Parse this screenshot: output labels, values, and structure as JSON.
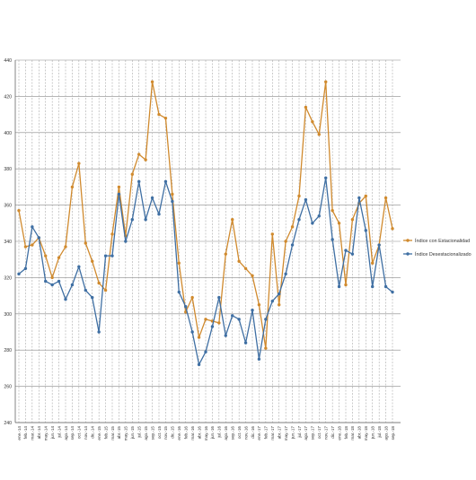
{
  "chart_data": {
    "type": "line",
    "title": "",
    "xlabel": "",
    "ylabel": "",
    "ylim": [
      240,
      440
    ],
    "yticks": [
      240,
      260,
      280,
      300,
      320,
      340,
      360,
      380,
      400,
      420,
      440
    ],
    "grid": true,
    "legend_position": "right",
    "categories": [
      "ene.-14",
      "feb.-14",
      "mar.-14",
      "abr.-14",
      "may.-14",
      "jun.-14",
      "jul.-14",
      "ago.-14",
      "sep.-14",
      "oct.-14",
      "nov.-14",
      "dic.-14",
      "ene.-15",
      "feb.-15",
      "mar.-15",
      "abr.-15",
      "may.-15",
      "jun.-15",
      "jul.-15",
      "ago.-15",
      "sep.-15",
      "oct.-15",
      "nov.-15",
      "dic.-15",
      "ene.-16",
      "feb.-16",
      "mar.-16",
      "abr.-16",
      "may.-16",
      "jun.-16",
      "jul.-16",
      "ago.-16",
      "sep.-16",
      "oct.-16",
      "nov.-16",
      "dic.-16",
      "ene.-17",
      "feb.-17",
      "mar.-17",
      "abr.-17",
      "may.-17",
      "jun.-17",
      "jul.-17",
      "ago.-17",
      "sep.-17",
      "oct.-17",
      "nov.-17",
      "dic.-17",
      "ene.-18",
      "feb.-18",
      "mar.-18",
      "abr.-18",
      "may.-18",
      "jun.-18",
      "jul.-18",
      "ago.-18",
      "sep.-18"
    ],
    "series": [
      {
        "name": "Índice con Estacionalidad",
        "color": "#D08A2E",
        "values": [
          357,
          337,
          338,
          342,
          332,
          320,
          331,
          337,
          370,
          383,
          339,
          329,
          317,
          313,
          344,
          370,
          343,
          377,
          388,
          385,
          428,
          410,
          408,
          366,
          328,
          301,
          309,
          287,
          297,
          296,
          295,
          333,
          352,
          329,
          325,
          321,
          305,
          281,
          344,
          305,
          340,
          348,
          365,
          414,
          406,
          399,
          428,
          357,
          350,
          316,
          352,
          361,
          365,
          328,
          338,
          364,
          347
        ]
      },
      {
        "name": "Índice Desestacionalizado",
        "color": "#3F6FA3",
        "values": [
          322,
          325,
          348,
          342,
          318,
          316,
          318,
          308,
          316,
          326,
          313,
          309,
          290,
          332,
          332,
          366,
          340,
          352,
          373,
          352,
          364,
          355,
          373,
          362,
          312,
          304,
          290,
          272,
          279,
          293,
          309,
          288,
          299,
          297,
          284,
          302,
          275,
          297,
          307,
          311,
          322,
          338,
          352,
          363,
          350,
          354,
          375,
          341,
          315,
          335,
          333,
          364,
          346,
          315,
          338,
          315,
          312
        ]
      }
    ]
  }
}
